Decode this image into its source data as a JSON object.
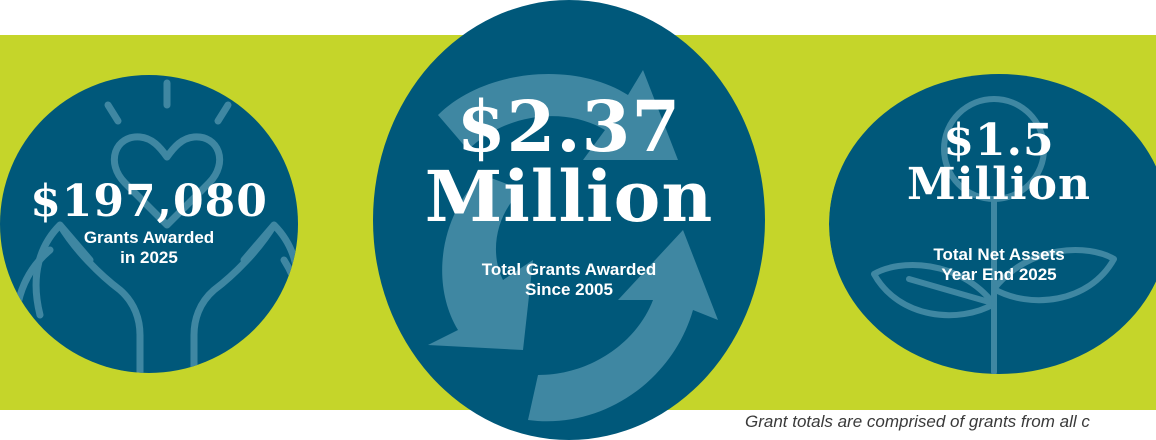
{
  "stats": [
    {
      "value": "$197,080",
      "label_line1": "Grants Awarded",
      "label_line2": "in 2025",
      "icon": "hands-heart-icon"
    },
    {
      "value_line1": "$2.37",
      "value_line2": "Million",
      "label_line1": "Total Grants Awarded",
      "label_line2": "Since 2005",
      "icon": "arrows-cycle-icon"
    },
    {
      "value_line1": "$1.5",
      "value_line2": "Million",
      "label_line1": "Total Net Assets",
      "label_line2": "Year End 2025",
      "icon": "plant-coin-icon"
    }
  ],
  "footnote": "Grant totals are comprised of grants from all c",
  "colors": {
    "band": "#c5d52a",
    "circle": "#00587a",
    "icon_line": "#3f87a2",
    "text": "#ffffff"
  }
}
